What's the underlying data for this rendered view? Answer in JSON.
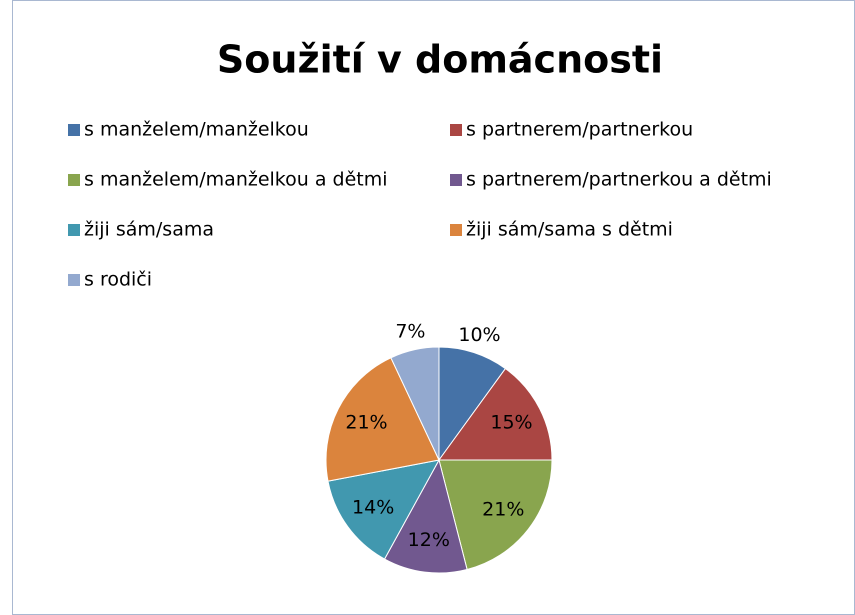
{
  "chart_data": {
    "type": "pie",
    "title": "Soužití v domácnosti",
    "categories": [
      "s manželem/manželkou",
      "s partnerem/partnerkou",
      "s manželem/manželkou a dětmi",
      "s partnerem/partnerkou a dětmi",
      "žiji sám/sama",
      "žiji sám/sama s dětmi",
      "s rodiči"
    ],
    "values": [
      10,
      15,
      21,
      12,
      14,
      21,
      7
    ],
    "value_labels": [
      "10%",
      "15%",
      "21%",
      "12%",
      "14%",
      "21%",
      "7%"
    ],
    "colors": [
      "#4572a7",
      "#aa4643",
      "#89a54e",
      "#71588f",
      "#4198af",
      "#db843d",
      "#93a9cf"
    ],
    "legend": "top"
  }
}
